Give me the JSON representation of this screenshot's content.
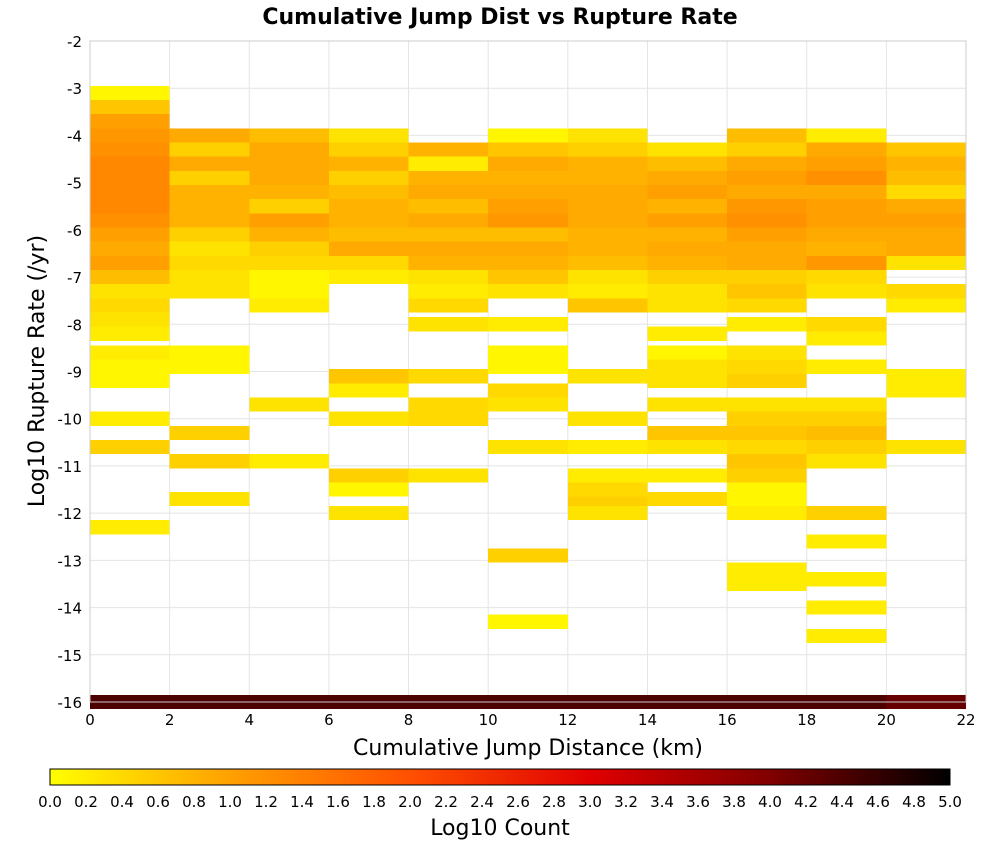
{
  "chart_data": {
    "type": "heatmap",
    "title": "Cumulative Jump Dist vs Rupture Rate",
    "xlabel": "Cumulative Jump Distance (km)",
    "ylabel": "Log10 Rupture Rate (/yr)",
    "colorbar_label": "Log10 Count",
    "xlim": [
      0,
      22
    ],
    "ylim": [
      -16,
      -2
    ],
    "x_ticks": [
      "0",
      "2",
      "4",
      "6",
      "8",
      "10",
      "12",
      "14",
      "16",
      "18",
      "20",
      "22"
    ],
    "y_ticks": [
      "-2",
      "-3",
      "-4",
      "-5",
      "-6",
      "-7",
      "-8",
      "-9",
      "-10",
      "-11",
      "-12",
      "-13",
      "-14",
      "-15",
      "-16"
    ],
    "colorbar_ticks": [
      "0.0",
      "0.2",
      "0.4",
      "0.6",
      "0.8",
      "1.0",
      "1.2",
      "1.4",
      "1.6",
      "1.8",
      "2.0",
      "2.2",
      "2.4",
      "2.6",
      "2.8",
      "3.0",
      "3.2",
      "3.4",
      "3.6",
      "3.8",
      "4.0",
      "4.2",
      "4.4",
      "4.6",
      "4.8",
      "5.0"
    ],
    "color_range": [
      0,
      5
    ],
    "colormap": [
      "#ffff00",
      "#ffa000",
      "#ff5000",
      "#e00000",
      "#800000",
      "#000000"
    ],
    "grid": true,
    "x_bin_width": 2,
    "y_bin_height": 0.3,
    "columns": [
      {
        "x0": 0,
        "cells": [
          [
            -3.1,
            0.1
          ],
          [
            -3.4,
            0.6
          ],
          [
            -3.7,
            1.0
          ],
          [
            -4.0,
            1.1
          ],
          [
            -4.3,
            1.2
          ],
          [
            -4.6,
            1.3
          ],
          [
            -4.9,
            1.3
          ],
          [
            -5.2,
            1.3
          ],
          [
            -5.5,
            1.3
          ],
          [
            -5.8,
            1.2
          ],
          [
            -6.1,
            1.0
          ],
          [
            -6.4,
            0.9
          ],
          [
            -6.7,
            1.0
          ],
          [
            -7.0,
            0.7
          ],
          [
            -7.3,
            0.3
          ],
          [
            -7.6,
            0.4
          ],
          [
            -7.9,
            0.3
          ],
          [
            -8.2,
            0.2
          ],
          [
            -8.6,
            0.2
          ],
          [
            -8.9,
            0.1
          ],
          [
            -9.2,
            0.1
          ],
          [
            -10.0,
            0.2
          ],
          [
            -10.6,
            0.5
          ],
          [
            -12.3,
            0.2
          ],
          [
            -16.0,
            4.4
          ]
        ]
      },
      {
        "x0": 2,
        "cells": [
          [
            -4.0,
            0.9
          ],
          [
            -4.3,
            0.5
          ],
          [
            -4.6,
            0.9
          ],
          [
            -4.9,
            0.5
          ],
          [
            -5.2,
            0.8
          ],
          [
            -5.5,
            0.8
          ],
          [
            -5.8,
            0.8
          ],
          [
            -6.1,
            0.5
          ],
          [
            -6.4,
            0.3
          ],
          [
            -6.7,
            0.4
          ],
          [
            -7.0,
            0.3
          ],
          [
            -7.3,
            0.3
          ],
          [
            -8.6,
            0.1
          ],
          [
            -8.9,
            0.1
          ],
          [
            -10.3,
            0.5
          ],
          [
            -10.9,
            0.5
          ],
          [
            -11.7,
            0.3
          ],
          [
            -16.0,
            4.4
          ]
        ]
      },
      {
        "x0": 4,
        "cells": [
          [
            -4.0,
            0.7
          ],
          [
            -4.3,
            0.9
          ],
          [
            -4.6,
            0.9
          ],
          [
            -4.9,
            0.9
          ],
          [
            -5.2,
            0.8
          ],
          [
            -5.5,
            0.5
          ],
          [
            -5.8,
            1.0
          ],
          [
            -6.1,
            0.8
          ],
          [
            -6.4,
            0.5
          ],
          [
            -6.7,
            0.4
          ],
          [
            -7.0,
            0.1
          ],
          [
            -7.3,
            0.1
          ],
          [
            -7.6,
            0.2
          ],
          [
            -9.7,
            0.3
          ],
          [
            -10.9,
            0.2
          ],
          [
            -16.0,
            4.4
          ]
        ]
      },
      {
        "x0": 6,
        "cells": [
          [
            -4.0,
            0.3
          ],
          [
            -4.3,
            0.5
          ],
          [
            -4.6,
            0.8
          ],
          [
            -4.9,
            0.5
          ],
          [
            -5.2,
            0.7
          ],
          [
            -5.5,
            0.8
          ],
          [
            -5.8,
            0.8
          ],
          [
            -6.1,
            0.7
          ],
          [
            -6.4,
            0.9
          ],
          [
            -6.7,
            0.4
          ],
          [
            -7.0,
            0.2
          ],
          [
            -9.1,
            0.6
          ],
          [
            -9.4,
            0.2
          ],
          [
            -10.0,
            0.3
          ],
          [
            -11.2,
            0.5
          ],
          [
            -11.5,
            0.1
          ],
          [
            -12.0,
            0.3
          ],
          [
            -16.0,
            4.4
          ]
        ]
      },
      {
        "x0": 8,
        "cells": [
          [
            -4.3,
            0.8
          ],
          [
            -4.6,
            0.2
          ],
          [
            -4.9,
            0.8
          ],
          [
            -5.2,
            0.9
          ],
          [
            -5.5,
            0.7
          ],
          [
            -5.8,
            0.9
          ],
          [
            -6.1,
            0.7
          ],
          [
            -6.4,
            0.9
          ],
          [
            -6.7,
            0.8
          ],
          [
            -7.0,
            0.3
          ],
          [
            -7.3,
            0.2
          ],
          [
            -7.6,
            0.4
          ],
          [
            -8.0,
            0.3
          ],
          [
            -9.1,
            0.4
          ],
          [
            -9.7,
            0.4
          ],
          [
            -10.0,
            0.4
          ],
          [
            -11.2,
            0.3
          ],
          [
            -16.0,
            4.4
          ]
        ]
      },
      {
        "x0": 10,
        "cells": [
          [
            -4.0,
            0.1
          ],
          [
            -4.3,
            0.6
          ],
          [
            -4.6,
            0.9
          ],
          [
            -4.9,
            0.8
          ],
          [
            -5.2,
            0.9
          ],
          [
            -5.5,
            1.0
          ],
          [
            -5.8,
            1.1
          ],
          [
            -6.1,
            0.7
          ],
          [
            -6.4,
            0.9
          ],
          [
            -6.7,
            0.8
          ],
          [
            -7.0,
            0.6
          ],
          [
            -7.3,
            0.3
          ],
          [
            -8.0,
            0.2
          ],
          [
            -8.6,
            0.1
          ],
          [
            -8.9,
            0.1
          ],
          [
            -9.4,
            0.4
          ],
          [
            -9.7,
            0.3
          ],
          [
            -10.6,
            0.3
          ],
          [
            -12.9,
            0.5
          ],
          [
            -14.3,
            0.1
          ],
          [
            -16.0,
            4.4
          ]
        ]
      },
      {
        "x0": 12,
        "cells": [
          [
            -4.0,
            0.3
          ],
          [
            -4.3,
            0.5
          ],
          [
            -4.6,
            0.8
          ],
          [
            -4.9,
            0.8
          ],
          [
            -5.2,
            0.9
          ],
          [
            -5.5,
            0.9
          ],
          [
            -5.8,
            0.9
          ],
          [
            -6.1,
            0.8
          ],
          [
            -6.4,
            0.8
          ],
          [
            -6.7,
            0.7
          ],
          [
            -7.0,
            0.3
          ],
          [
            -7.3,
            0.2
          ],
          [
            -7.6,
            0.6
          ],
          [
            -9.1,
            0.3
          ],
          [
            -10.0,
            0.3
          ],
          [
            -10.6,
            0.2
          ],
          [
            -11.2,
            0.2
          ],
          [
            -11.5,
            0.4
          ],
          [
            -11.8,
            0.5
          ],
          [
            -12.0,
            0.3
          ],
          [
            -16.0,
            4.4
          ]
        ]
      },
      {
        "x0": 14,
        "cells": [
          [
            -4.3,
            0.3
          ],
          [
            -4.6,
            0.7
          ],
          [
            -4.9,
            0.9
          ],
          [
            -5.2,
            1.0
          ],
          [
            -5.5,
            0.8
          ],
          [
            -5.8,
            1.0
          ],
          [
            -6.1,
            0.8
          ],
          [
            -6.4,
            0.9
          ],
          [
            -6.7,
            0.8
          ],
          [
            -7.0,
            0.5
          ],
          [
            -7.3,
            0.3
          ],
          [
            -7.6,
            0.3
          ],
          [
            -8.2,
            0.2
          ],
          [
            -8.6,
            0.1
          ],
          [
            -8.9,
            0.3
          ],
          [
            -9.2,
            0.3
          ],
          [
            -9.7,
            0.3
          ],
          [
            -10.3,
            0.6
          ],
          [
            -10.6,
            0.3
          ],
          [
            -11.2,
            0.2
          ],
          [
            -11.7,
            0.4
          ],
          [
            -16.0,
            4.4
          ]
        ]
      },
      {
        "x0": 16,
        "cells": [
          [
            -4.0,
            0.7
          ],
          [
            -4.3,
            0.5
          ],
          [
            -4.6,
            0.9
          ],
          [
            -4.9,
            1.0
          ],
          [
            -5.2,
            0.9
          ],
          [
            -5.5,
            1.1
          ],
          [
            -5.8,
            1.2
          ],
          [
            -6.1,
            1.0
          ],
          [
            -6.4,
            0.9
          ],
          [
            -6.7,
            0.9
          ],
          [
            -7.0,
            0.5
          ],
          [
            -7.3,
            0.6
          ],
          [
            -7.6,
            0.4
          ],
          [
            -8.0,
            0.2
          ],
          [
            -8.6,
            0.3
          ],
          [
            -8.9,
            0.4
          ],
          [
            -9.2,
            0.5
          ],
          [
            -9.7,
            0.3
          ],
          [
            -10.0,
            0.5
          ],
          [
            -10.3,
            0.6
          ],
          [
            -10.6,
            0.4
          ],
          [
            -10.9,
            0.6
          ],
          [
            -11.2,
            0.5
          ],
          [
            -11.5,
            0.1
          ],
          [
            -11.8,
            0.1
          ],
          [
            -12.0,
            0.2
          ],
          [
            -13.2,
            0.2
          ],
          [
            -13.5,
            0.2
          ],
          [
            -16.0,
            4.4
          ]
        ]
      },
      {
        "x0": 18,
        "cells": [
          [
            -4.0,
            0.2
          ],
          [
            -4.3,
            0.9
          ],
          [
            -4.6,
            1.0
          ],
          [
            -4.9,
            1.2
          ],
          [
            -5.2,
            0.9
          ],
          [
            -5.5,
            1.0
          ],
          [
            -5.8,
            1.0
          ],
          [
            -6.1,
            0.9
          ],
          [
            -6.4,
            0.8
          ],
          [
            -6.7,
            1.1
          ],
          [
            -7.0,
            0.4
          ],
          [
            -7.3,
            0.3
          ],
          [
            -8.0,
            0.4
          ],
          [
            -8.3,
            0.2
          ],
          [
            -8.9,
            0.2
          ],
          [
            -9.7,
            0.3
          ],
          [
            -10.0,
            0.5
          ],
          [
            -10.3,
            0.7
          ],
          [
            -10.6,
            0.5
          ],
          [
            -10.9,
            0.3
          ],
          [
            -12.0,
            0.5
          ],
          [
            -12.6,
            0.2
          ],
          [
            -13.4,
            0.2
          ],
          [
            -14.0,
            0.2
          ],
          [
            -14.6,
            0.2
          ],
          [
            -16.0,
            4.4
          ]
        ]
      },
      {
        "x0": 20,
        "cells": [
          [
            -4.3,
            0.6
          ],
          [
            -4.6,
            0.8
          ],
          [
            -4.9,
            0.7
          ],
          [
            -5.2,
            0.4
          ],
          [
            -5.5,
            0.9
          ],
          [
            -5.8,
            1.0
          ],
          [
            -6.1,
            0.9
          ],
          [
            -6.4,
            0.9
          ],
          [
            -6.7,
            0.3
          ],
          [
            -7.3,
            0.4
          ],
          [
            -7.6,
            0.2
          ],
          [
            -9.1,
            0.2
          ],
          [
            -9.4,
            0.2
          ],
          [
            -10.6,
            0.3
          ],
          [
            -16.0,
            4.2
          ]
        ]
      }
    ]
  }
}
